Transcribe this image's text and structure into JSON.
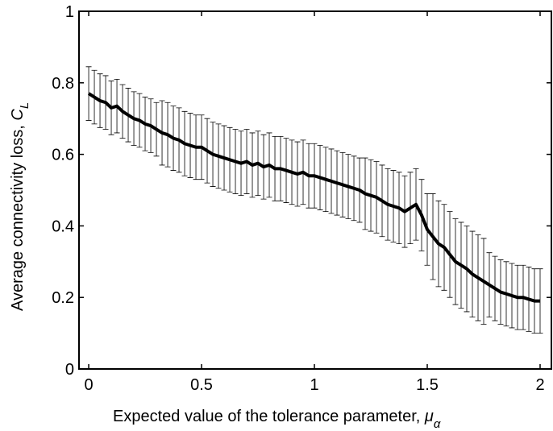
{
  "chart_data": {
    "type": "errorbar_line",
    "xlabel": {
      "text": "Expected  value of the tolerance parameter, ",
      "symbol": "μ",
      "subscript": "α"
    },
    "ylabel": {
      "text": "Average connectivity loss, ",
      "symbol": "C",
      "subscript": "L"
    },
    "xlim": [
      -0.043,
      2.05
    ],
    "ylim": [
      0,
      1
    ],
    "xticks": [
      0,
      0.5,
      1,
      1.5,
      2
    ],
    "yticks": [
      0,
      0.2,
      0.4,
      0.6,
      0.8,
      1
    ],
    "color": "#000000",
    "x": [
      0,
      0.025,
      0.05,
      0.075,
      0.1,
      0.125,
      0.15,
      0.175,
      0.2,
      0.225,
      0.25,
      0.275,
      0.3,
      0.325,
      0.35,
      0.375,
      0.4,
      0.425,
      0.45,
      0.475,
      0.5,
      0.525,
      0.55,
      0.575,
      0.6,
      0.625,
      0.65,
      0.675,
      0.7,
      0.725,
      0.75,
      0.775,
      0.8,
      0.825,
      0.85,
      0.875,
      0.9,
      0.925,
      0.95,
      0.975,
      1,
      1.025,
      1.05,
      1.075,
      1.1,
      1.125,
      1.15,
      1.175,
      1.2,
      1.225,
      1.25,
      1.275,
      1.3,
      1.325,
      1.35,
      1.375,
      1.4,
      1.425,
      1.45,
      1.475,
      1.5,
      1.525,
      1.55,
      1.575,
      1.6,
      1.625,
      1.65,
      1.675,
      1.7,
      1.725,
      1.75,
      1.775,
      1.8,
      1.825,
      1.85,
      1.875,
      1.9,
      1.925,
      1.95,
      1.975,
      2
    ],
    "values": [
      0.77,
      0.76,
      0.75,
      0.745,
      0.73,
      0.735,
      0.72,
      0.71,
      0.7,
      0.695,
      0.685,
      0.68,
      0.67,
      0.66,
      0.655,
      0.645,
      0.64,
      0.63,
      0.625,
      0.62,
      0.62,
      0.61,
      0.6,
      0.595,
      0.59,
      0.585,
      0.58,
      0.575,
      0.58,
      0.57,
      0.575,
      0.565,
      0.57,
      0.56,
      0.56,
      0.555,
      0.55,
      0.545,
      0.55,
      0.54,
      0.54,
      0.535,
      0.53,
      0.525,
      0.52,
      0.515,
      0.51,
      0.505,
      0.5,
      0.49,
      0.485,
      0.48,
      0.47,
      0.46,
      0.455,
      0.45,
      0.44,
      0.45,
      0.46,
      0.43,
      0.39,
      0.37,
      0.35,
      0.34,
      0.32,
      0.3,
      0.29,
      0.28,
      0.265,
      0.255,
      0.245,
      0.235,
      0.225,
      0.215,
      0.21,
      0.205,
      0.2,
      0.2,
      0.195,
      0.19,
      0.19
    ],
    "errors": [
      0.075,
      0.075,
      0.075,
      0.075,
      0.075,
      0.075,
      0.075,
      0.075,
      0.075,
      0.075,
      0.075,
      0.075,
      0.075,
      0.09,
      0.09,
      0.09,
      0.09,
      0.09,
      0.09,
      0.09,
      0.09,
      0.09,
      0.09,
      0.09,
      0.09,
      0.09,
      0.09,
      0.09,
      0.09,
      0.09,
      0.09,
      0.09,
      0.09,
      0.09,
      0.09,
      0.09,
      0.09,
      0.09,
      0.09,
      0.09,
      0.09,
      0.09,
      0.09,
      0.09,
      0.09,
      0.09,
      0.09,
      0.09,
      0.09,
      0.1,
      0.1,
      0.1,
      0.1,
      0.1,
      0.1,
      0.1,
      0.1,
      0.1,
      0.1,
      0.1,
      0.1,
      0.12,
      0.12,
      0.12,
      0.12,
      0.12,
      0.12,
      0.12,
      0.12,
      0.12,
      0.12,
      0.09,
      0.09,
      0.09,
      0.09,
      0.09,
      0.09,
      0.09,
      0.09,
      0.09,
      0.09
    ]
  }
}
